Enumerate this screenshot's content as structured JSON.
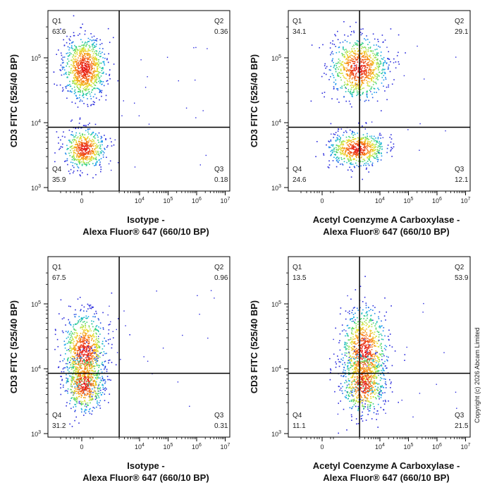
{
  "copyright": "Copyright (c) 2026 Abcam Limited",
  "chart_data": [
    {
      "type": "scatter",
      "subtype": "flow-cytometry-density",
      "title": "",
      "ylabel": "CD3 FITC (525/40 BP)",
      "xlabel": [
        "Isotype -",
        "Alexa Fluor® 647  (660/10 BP)"
      ],
      "x_ticks": [
        "0",
        "10^4",
        "10^5",
        "10^6",
        "10^7"
      ],
      "y_ticks": [
        "10^3",
        "10^4",
        "10^5"
      ],
      "x_scale": "biexponential",
      "y_scale": "log",
      "gate": {
        "x": 2000,
        "y": 8500
      },
      "quadrants": [
        {
          "name": "Q1",
          "percent": "63.6"
        },
        {
          "name": "Q2",
          "percent": "0.36"
        },
        {
          "name": "Q3",
          "percent": "0.18"
        },
        {
          "name": "Q4",
          "percent": "35.9"
        }
      ],
      "populations": [
        {
          "x_center": 50,
          "y_center": 70000
        },
        {
          "x_center": 50,
          "y_center": 4000
        }
      ]
    },
    {
      "type": "scatter",
      "subtype": "flow-cytometry-density",
      "title": "",
      "ylabel": "CD3 FITC (525/40 BP)",
      "xlabel": [
        "Acetyl Coenzyme A Carboxylase -",
        "Alexa Fluor® 647  (660/10 BP)"
      ],
      "x_ticks": [
        "0",
        "10^4",
        "10^5",
        "10^6",
        "10^7"
      ],
      "y_ticks": [
        "10^3",
        "10^4",
        "10^5"
      ],
      "x_scale": "biexponential",
      "y_scale": "log",
      "gate": {
        "x": 2000,
        "y": 8500
      },
      "quadrants": [
        {
          "name": "Q1",
          "percent": "34.1"
        },
        {
          "name": "Q2",
          "percent": "29.1"
        },
        {
          "name": "Q3",
          "percent": "12.1"
        },
        {
          "name": "Q4",
          "percent": "24.6"
        }
      ],
      "populations": [
        {
          "x_center": 1800,
          "y_center": 70000
        },
        {
          "x_center": 1600,
          "y_center": 4000
        }
      ]
    },
    {
      "type": "scatter",
      "subtype": "flow-cytometry-density",
      "title": "",
      "ylabel": "CD3 FITC (525/40 BP)",
      "xlabel": [
        "Isotype -",
        "Alexa Fluor® 647  (660/10 BP)"
      ],
      "x_ticks": [
        "0",
        "10^4",
        "10^5",
        "10^6",
        "10^7"
      ],
      "y_ticks": [
        "10^3",
        "10^4",
        "10^5"
      ],
      "x_scale": "biexponential",
      "y_scale": "log",
      "gate": {
        "x": 2000,
        "y": 8500
      },
      "quadrants": [
        {
          "name": "Q1",
          "percent": "67.5"
        },
        {
          "name": "Q2",
          "percent": "0.96"
        },
        {
          "name": "Q3",
          "percent": "0.31"
        },
        {
          "name": "Q4",
          "percent": "31.2"
        }
      ],
      "populations": [
        {
          "x_center": 50,
          "y_center": 18000
        },
        {
          "x_center": 50,
          "y_center": 6000
        }
      ]
    },
    {
      "type": "scatter",
      "subtype": "flow-cytometry-density",
      "title": "",
      "ylabel": "CD3 FITC (525/40 BP)",
      "xlabel": [
        "Acetyl Coenzyme A Carboxylase -",
        "Alexa Fluor® 647  (660/10 BP)"
      ],
      "x_ticks": [
        "0",
        "10^4",
        "10^5",
        "10^6",
        "10^7"
      ],
      "y_ticks": [
        "10^3",
        "10^4",
        "10^5"
      ],
      "x_scale": "biexponential",
      "y_scale": "log",
      "gate": {
        "x": 2000,
        "y": 8500
      },
      "quadrants": [
        {
          "name": "Q1",
          "percent": "13.5"
        },
        {
          "name": "Q2",
          "percent": "53.9"
        },
        {
          "name": "Q3",
          "percent": "21.5"
        },
        {
          "name": "Q4",
          "percent": "11.1"
        }
      ],
      "populations": [
        {
          "x_center": 2800,
          "y_center": 18000
        },
        {
          "x_center": 2600,
          "y_center": 6000
        }
      ]
    }
  ]
}
